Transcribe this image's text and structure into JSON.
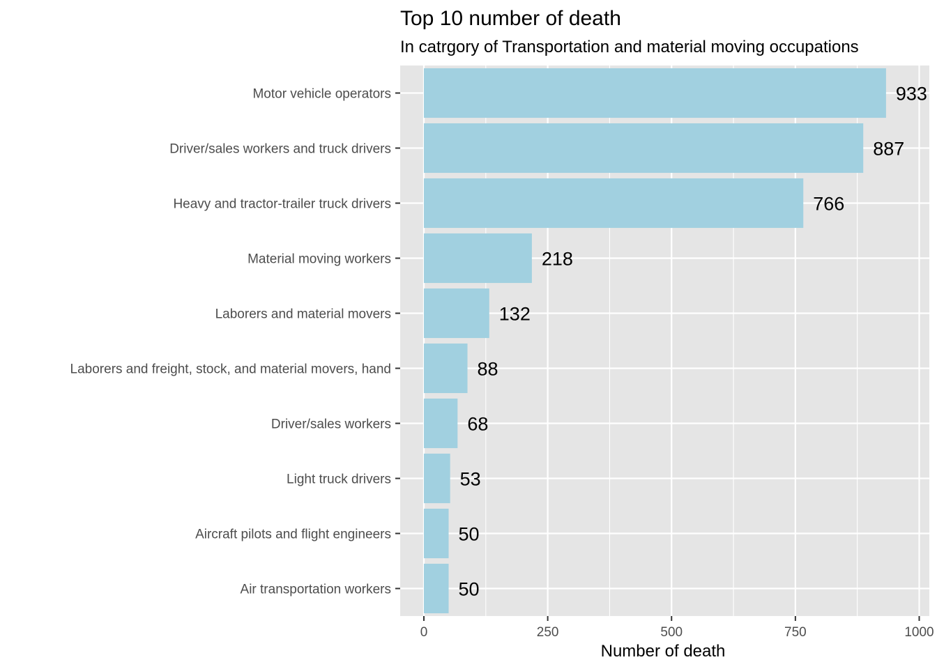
{
  "chart_data": {
    "type": "bar",
    "orientation": "horizontal",
    "title": "Top 10 number of death",
    "subtitle": "In catrgory of Transportation and material moving occupations",
    "xlabel": "Number of death",
    "ylabel": "",
    "xlim": [
      -47,
      1000
    ],
    "xticks": [
      0,
      250,
      500,
      750,
      1000
    ],
    "xtick_labels": [
      "0",
      "250",
      "500",
      "750",
      "1000"
    ],
    "grid": true,
    "bar_color": "#a1d0e0",
    "panel_color": "#e5e5e5",
    "grid_color": "#ffffff",
    "categories": [
      "Motor vehicle operators",
      "Driver/sales workers and truck drivers",
      "Heavy and tractor-trailer truck drivers",
      "Material moving workers",
      "Laborers and material movers",
      "Laborers and freight, stock, and material movers, hand",
      "Driver/sales workers",
      "Light truck drivers",
      "Aircraft pilots and flight engineers",
      "Air transportation workers"
    ],
    "values": [
      933,
      887,
      766,
      218,
      132,
      88,
      68,
      53,
      50,
      50
    ],
    "data_labels": [
      "933",
      "887",
      "766",
      "218",
      "132",
      "88",
      "68",
      "53",
      "50",
      "50"
    ]
  }
}
